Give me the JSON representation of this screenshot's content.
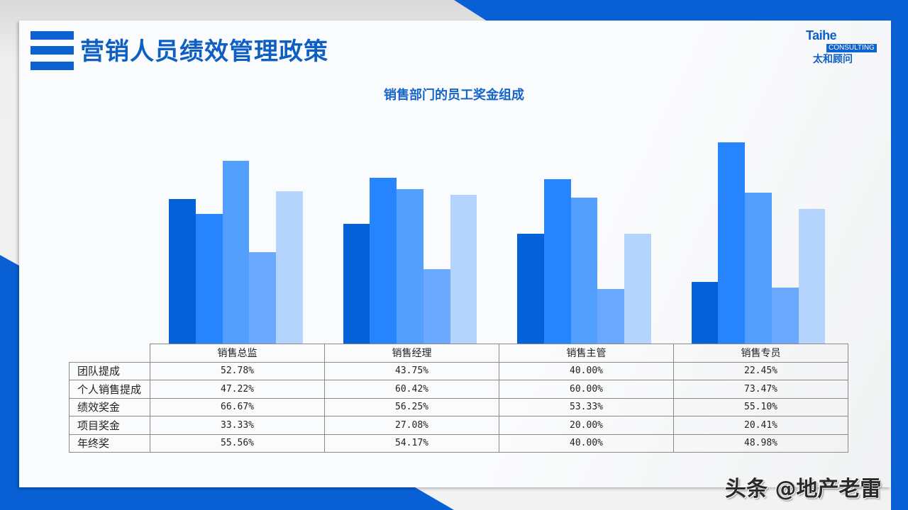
{
  "header": {
    "title": "营销人员绩效管理政策",
    "logo": {
      "main": "Taihe",
      "sub": "CONSULTING",
      "cn": "太和顾问"
    }
  },
  "colors": {
    "brand_blue": "#0b62d0",
    "series": [
      "#0461d8",
      "#2584fe",
      "#529ffd",
      "#6aa9fd",
      "#b5d4fd"
    ]
  },
  "chart_data": {
    "type": "bar",
    "title": "销售部门的员工奖金组成",
    "categories": [
      "销售总监",
      "销售经理",
      "销售主管",
      "销售专员"
    ],
    "series": [
      {
        "name": "团队提成",
        "values": [
          52.78,
          43.75,
          40.0,
          22.45
        ],
        "labels": [
          "52.78%",
          "43.75%",
          "40.00%",
          "22.45%"
        ]
      },
      {
        "name": "个人销售提成",
        "values": [
          47.22,
          60.42,
          60.0,
          73.47
        ],
        "labels": [
          "47.22%",
          "60.42%",
          "60.00%",
          "73.47%"
        ]
      },
      {
        "name": "绩效奖金",
        "values": [
          66.67,
          56.25,
          53.33,
          55.1
        ],
        "labels": [
          "66.67%",
          "56.25%",
          "53.33%",
          "55.10%"
        ]
      },
      {
        "name": "项目奖金",
        "values": [
          33.33,
          27.08,
          20.0,
          20.41
        ],
        "labels": [
          "33.33%",
          "27.08%",
          "20.00%",
          "20.41%"
        ]
      },
      {
        "name": "年终奖",
        "values": [
          55.56,
          54.17,
          40.0,
          48.98
        ],
        "labels": [
          "55.56%",
          "54.17%",
          "40.00%",
          "48.98%"
        ]
      }
    ],
    "xlabel": "",
    "ylabel": "",
    "ylim": [
      0,
      80
    ],
    "grid": false,
    "legend": "data-table below chart"
  },
  "watermark": "头条 @地产老雷"
}
